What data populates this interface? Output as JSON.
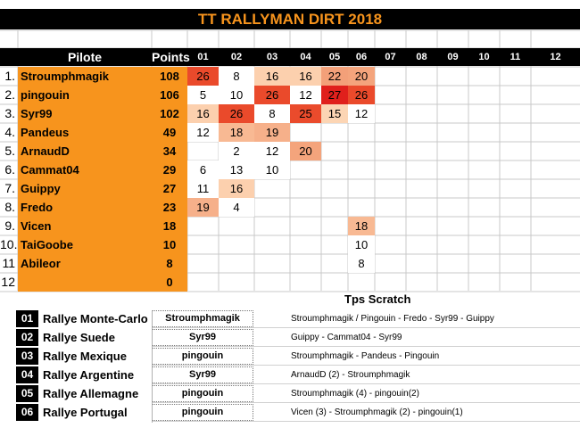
{
  "title": "TT RALLYMAN DIRT 2018",
  "headers": {
    "pilot": "Pilote",
    "points": "Points",
    "rounds": [
      "01",
      "02",
      "03",
      "04",
      "05",
      "06",
      "07",
      "08",
      "09",
      "10",
      "11",
      "12"
    ]
  },
  "ranking": [
    {
      "rank": "1.",
      "name": "Stroumphmagik",
      "points": "108",
      "scores": [
        "26",
        "8",
        "16",
        "16",
        "22",
        "20"
      ]
    },
    {
      "rank": "2.",
      "name": "pingouin",
      "points": "106",
      "scores": [
        "5",
        "10",
        "26",
        "12",
        "27",
        "26"
      ]
    },
    {
      "rank": "3.",
      "name": "Syr99",
      "points": "102",
      "scores": [
        "16",
        "26",
        "8",
        "25",
        "15",
        "12"
      ]
    },
    {
      "rank": "4.",
      "name": "Pandeus",
      "points": "49",
      "scores": [
        "12",
        "18",
        "19",
        "",
        "",
        ""
      ]
    },
    {
      "rank": "5.",
      "name": "ArnaudD",
      "points": "34",
      "scores": [
        "",
        "2",
        "12",
        "20",
        "",
        ""
      ]
    },
    {
      "rank": "6.",
      "name": "Cammat04",
      "points": "29",
      "scores": [
        "6",
        "13",
        "10",
        "",
        "",
        ""
      ]
    },
    {
      "rank": "7.",
      "name": "Guippy",
      "points": "27",
      "scores": [
        "11",
        "16",
        "",
        "",
        "",
        ""
      ]
    },
    {
      "rank": "8.",
      "name": "Fredo",
      "points": "23",
      "scores": [
        "19",
        "4",
        "",
        "",
        "",
        ""
      ]
    },
    {
      "rank": "9.",
      "name": "Vicen",
      "points": "18",
      "scores": [
        "",
        "",
        "",
        "",
        "",
        "18"
      ]
    },
    {
      "rank": "10.",
      "name": "TaiGoobe",
      "points": "10",
      "scores": [
        "",
        "",
        "",
        "",
        "",
        "10"
      ]
    },
    {
      "rank": "11",
      "name": "Abileor",
      "points": "8",
      "scores": [
        "",
        "",
        "",
        "",
        "",
        "8"
      ]
    },
    {
      "rank": "12",
      "name": "",
      "points": "0",
      "scores": [
        "",
        "",
        "",
        "",
        "",
        ""
      ]
    }
  ],
  "heat_colors": {
    "5": "#ffffff",
    "6": "#ffffff",
    "8": "#ffffff",
    "10": "#ffffff",
    "12": "#ffffff",
    "13": "#ffffff",
    "2": "#ffffff",
    "4": "#ffffff",
    "11": "#ffffff",
    "15": "#fcd5b4",
    "16": "#fcd0ae",
    "18": "#f8b993",
    "19": "#f6b08a",
    "20": "#f4a47c",
    "22": "#f3a079",
    "25": "#ea4b2c",
    "26": "#ea4a2b",
    "27": "#e0201c"
  },
  "scratch_title": "Tps Scratch",
  "rallies": [
    {
      "code": "01",
      "name": "Rallye Monte-Carlo",
      "winner": "Stroumphmagik",
      "scratch": "Stroumphmagik / Pingouin - Fredo - Syr99 - Guippy"
    },
    {
      "code": "02",
      "name": "Rallye Suede",
      "winner": "Syr99",
      "scratch": "Guippy - Cammat04 - Syr99"
    },
    {
      "code": "03",
      "name": "Rallye Mexique",
      "winner": "pingouin",
      "scratch": "Stroumphmagik - Pandeus - Pingouin"
    },
    {
      "code": "04",
      "name": "Rallye Argentine",
      "winner": "Syr99",
      "scratch": "ArnaudD (2) - Stroumphmagik"
    },
    {
      "code": "05",
      "name": "Rallye Allemagne",
      "winner": "pingouin",
      "scratch": "Stroumphmagik (4) - pingouin(2)"
    },
    {
      "code": "06",
      "name": "Rallye Portugal",
      "winner": "pingouin",
      "scratch": "Vicen (3) - Stroumphmagik (2) - pingouin(1)"
    }
  ]
}
